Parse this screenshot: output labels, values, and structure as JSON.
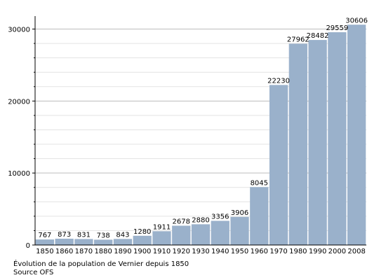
{
  "chart_data": {
    "type": "bar",
    "categories": [
      "1850",
      "1860",
      "1870",
      "1880",
      "1890",
      "1900",
      "1910",
      "1920",
      "1930",
      "1940",
      "1950",
      "1960",
      "1970",
      "1980",
      "1990",
      "2000",
      "2008"
    ],
    "values": [
      767,
      873,
      831,
      738,
      843,
      1280,
      1911,
      2678,
      2880,
      3356,
      3906,
      8045,
      22230,
      27962,
      28482,
      29559,
      30606
    ],
    "data_labels": [
      "767",
      "873",
      "831",
      "738",
      "843",
      "1280",
      "1911",
      "2678",
      "2880",
      "3356",
      "3906",
      "8045",
      "22230",
      "27962",
      "28482",
      "29559",
      "30606"
    ],
    "title": "",
    "xlabel": "",
    "ylabel": "",
    "ylim": [
      0,
      30000
    ],
    "y_ticks": [
      0,
      10000,
      20000,
      30000
    ],
    "y_tick_labels": [
      "0",
      "10000",
      "20000",
      "30000"
    ],
    "grid": true,
    "legend": "none",
    "bar_color": "#9ab1cb",
    "grid_color": "#bdbdbd"
  },
  "caption": {
    "line1": "Évolution de la population de Vernier depuis 1850",
    "line2": "Source OFS"
  }
}
